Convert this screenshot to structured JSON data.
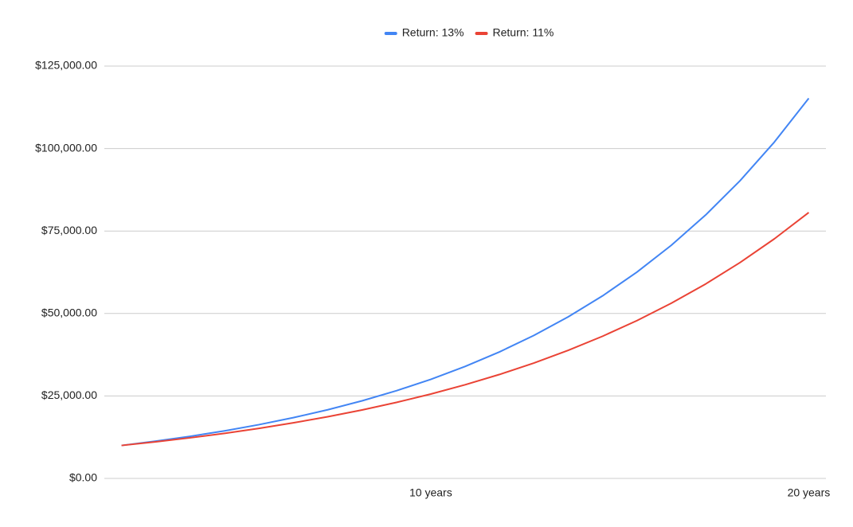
{
  "chart_data": {
    "type": "line",
    "categories": [
      null,
      null,
      null,
      null,
      null,
      null,
      null,
      null,
      null,
      "10 years",
      null,
      null,
      null,
      null,
      null,
      null,
      null,
      null,
      null,
      null,
      "20 years"
    ],
    "series": [
      {
        "name": "Return: 13%",
        "color": "#4285f4",
        "values": [
          10000,
          11300,
          12769,
          14429,
          16305,
          18424,
          20820,
          23526,
          26584,
          30040,
          33946,
          38359,
          43345,
          48980,
          55348,
          62543,
          70673,
          79861,
          90243,
          101974,
          115231
        ]
      },
      {
        "name": "Return: 11%",
        "color": "#ea4335",
        "values": [
          10000,
          11100,
          12321,
          13676,
          15181,
          16851,
          18704,
          20762,
          23045,
          25580,
          28394,
          31518,
          34985,
          38833,
          43104,
          47846,
          53109,
          58951,
          65436,
          72633,
          80623
        ]
      }
    ],
    "ylim": [
      0,
      125000
    ],
    "yticks": [
      {
        "value": 0,
        "label": "$0.00"
      },
      {
        "value": 25000,
        "label": "$25,000.00"
      },
      {
        "value": 50000,
        "label": "$50,000.00"
      },
      {
        "value": 75000,
        "label": "$75,000.00"
      },
      {
        "value": 100000,
        "label": "$100,000.00"
      },
      {
        "value": 125000,
        "label": "$125,000.00"
      }
    ],
    "grid": true,
    "legend": "top"
  }
}
